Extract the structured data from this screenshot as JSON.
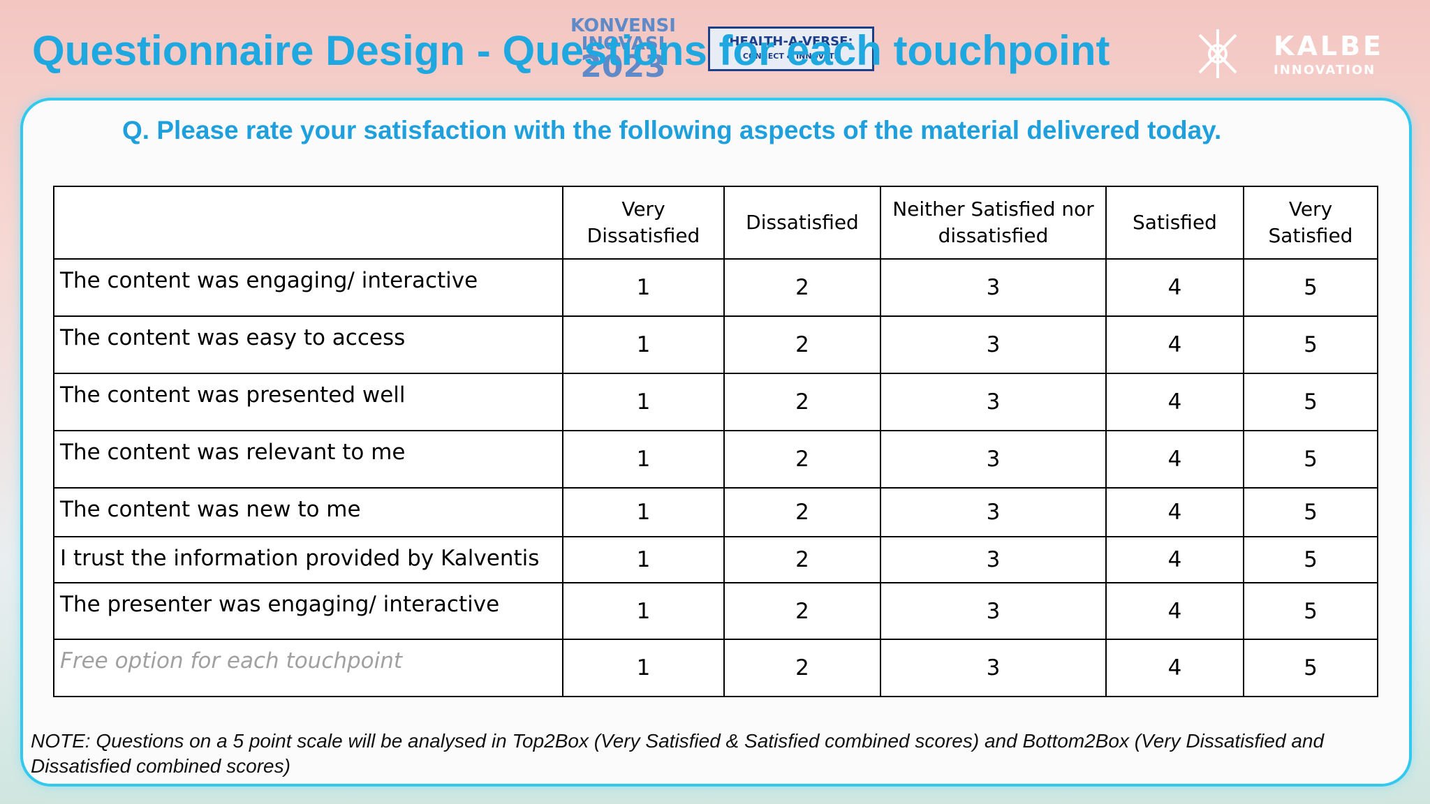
{
  "header": {
    "title": "Questionnaire Design - Questions for each touchpoint",
    "logos": {
      "event": [
        "KONVENSI",
        "INOVASI",
        "2023"
      ],
      "theme": [
        "HEALTH-A-VERSE:",
        "CONNECT & INNOVATE"
      ],
      "company": [
        "KALBE",
        "INNOVATION"
      ]
    }
  },
  "question": "Q. Please rate your satisfaction with the following aspects of the material delivered today.",
  "table": {
    "columns": [
      "Very Dissatisfied",
      "Dissatisfied",
      "Neither Satisfied nor dissatisfied",
      "Satisfied",
      "Very Satisfied"
    ],
    "rows": [
      {
        "statement": "The content was engaging/ interactive",
        "scores": [
          1,
          2,
          3,
          4,
          5
        ]
      },
      {
        "statement": "The content was easy to access",
        "scores": [
          1,
          2,
          3,
          4,
          5
        ]
      },
      {
        "statement": "The content was presented well",
        "scores": [
          1,
          2,
          3,
          4,
          5
        ]
      },
      {
        "statement": "The content was relevant to me",
        "scores": [
          1,
          2,
          3,
          4,
          5
        ]
      },
      {
        "statement": "The content was new to me",
        "scores": [
          1,
          2,
          3,
          4,
          5
        ]
      },
      {
        "statement": "I trust the information provided by Kalventis",
        "scores": [
          1,
          2,
          3,
          4,
          5
        ]
      },
      {
        "statement": "The presenter was engaging/ interactive",
        "scores": [
          1,
          2,
          3,
          4,
          5
        ]
      },
      {
        "statement": "Free option for each touchpoint",
        "scores": [
          1,
          2,
          3,
          4,
          5
        ]
      }
    ]
  },
  "note": "NOTE: Questions on a 5 point scale will be analysed in Top2Box (Very Satisfied & Satisfied combined scores) and Bottom2Box (Very Dissatisfied and Dissatisfied combined scores)"
}
